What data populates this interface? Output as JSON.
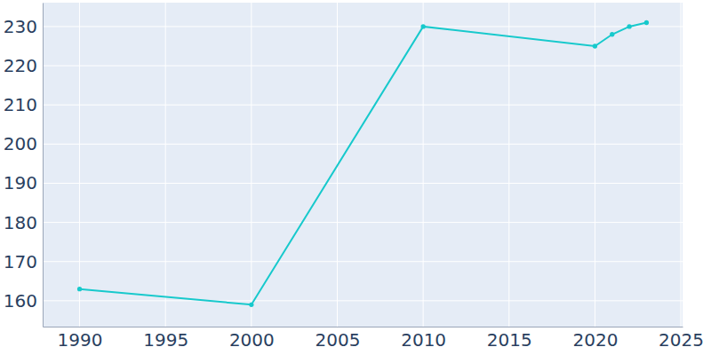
{
  "chart_data": {
    "type": "line",
    "x": [
      1990,
      2000,
      2010,
      2020,
      2021,
      2022,
      2023
    ],
    "values": [
      163,
      159,
      230,
      225,
      228,
      230,
      231
    ],
    "color": "#17c9cc",
    "marker": "circle",
    "xlim": [
      1987.85,
      2025.1
    ],
    "xticks": [
      1990,
      1995,
      2000,
      2005,
      2010,
      2015,
      2020,
      2025
    ],
    "ylim": [
      153.4,
      236.1
    ],
    "yticks": [
      160,
      170,
      180,
      190,
      200,
      210,
      220,
      230
    ],
    "grid": true
  }
}
